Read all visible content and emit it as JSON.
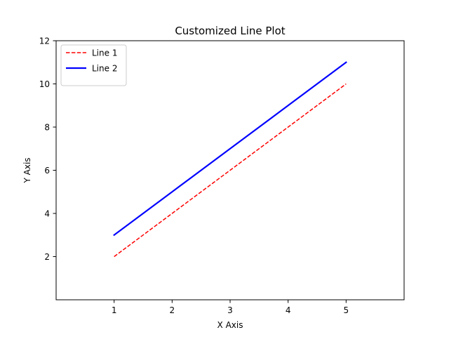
{
  "chart_data": {
    "type": "line",
    "title": "Customized Line Plot",
    "xlabel": "X Axis",
    "ylabel": "Y Axis",
    "xlim": [
      0,
      6
    ],
    "ylim": [
      0,
      12
    ],
    "xticks": [
      1,
      2,
      3,
      4,
      5
    ],
    "yticks": [
      2,
      4,
      6,
      8,
      10,
      12
    ],
    "grid": false,
    "legend_position": "upper left",
    "series": [
      {
        "name": "Line 1",
        "x": [
          1,
          2,
          3,
          4,
          5
        ],
        "y": [
          2,
          4,
          6,
          8,
          10
        ],
        "color": "#ff0000",
        "style": "dashed"
      },
      {
        "name": "Line 2",
        "x": [
          1,
          2,
          3,
          4,
          5
        ],
        "y": [
          3,
          5,
          7,
          9,
          11
        ],
        "color": "#0000ff",
        "style": "solid"
      }
    ]
  }
}
